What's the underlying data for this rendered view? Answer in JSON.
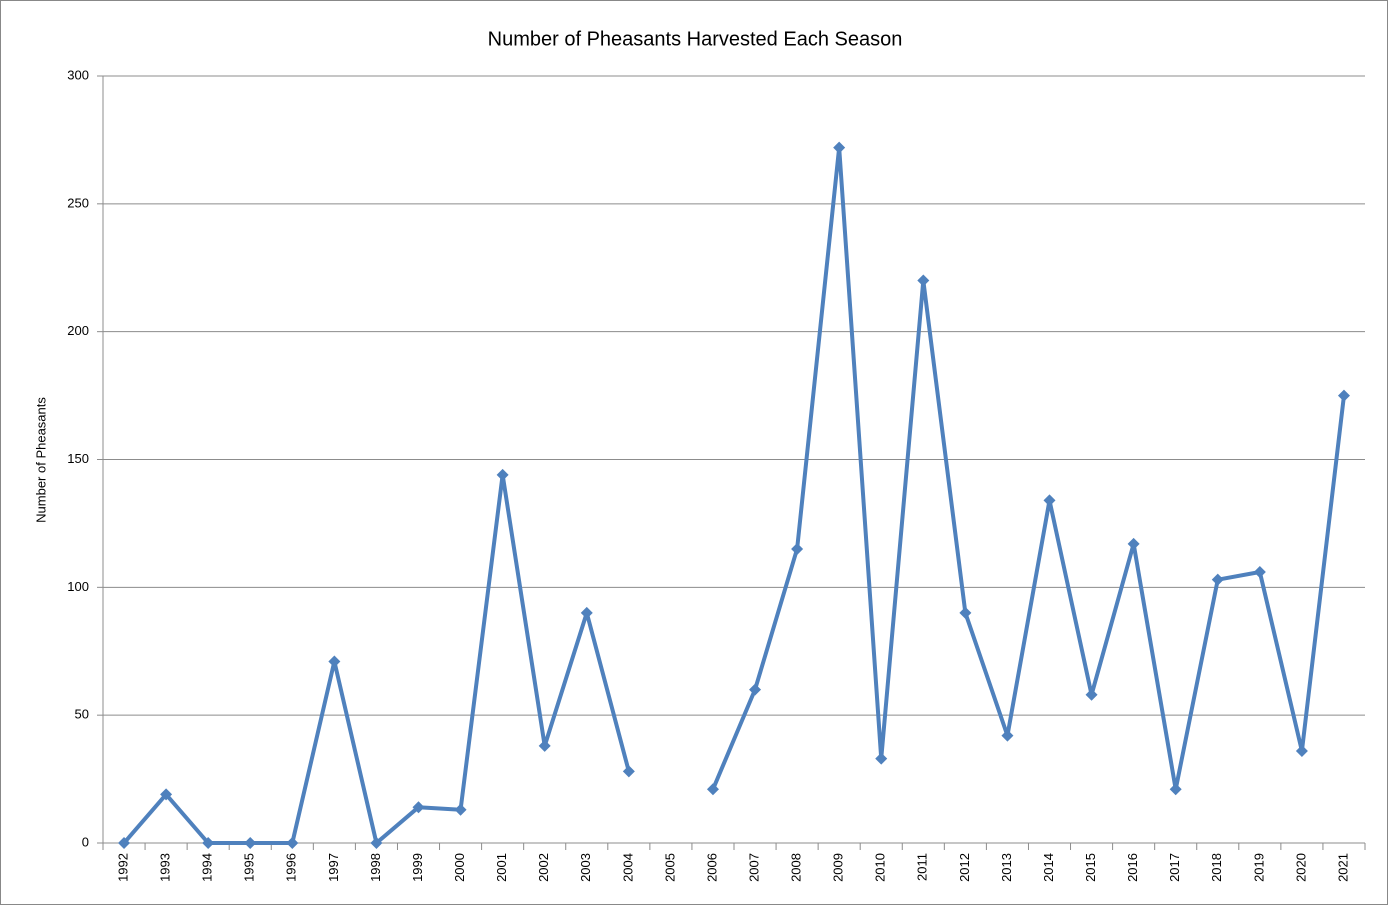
{
  "chart_data": {
    "type": "line",
    "title": "Number of Pheasants Harvested Each Season",
    "y_label": "Number of Pheasants",
    "categories": [
      "1992",
      "1993",
      "1994",
      "1995",
      "1996",
      "1997",
      "1998",
      "1999",
      "2000",
      "2001",
      "2002",
      "2003",
      "2004",
      "2005",
      "2006",
      "2007",
      "2008",
      "2009",
      "2010",
      "2011",
      "2012",
      "2013",
      "2014",
      "2015",
      "2016",
      "2017",
      "2018",
      "2019",
      "2020",
      "2021"
    ],
    "series": [
      {
        "name": "Pheasants",
        "color": "#4f81bd",
        "values": [
          0,
          19,
          0,
          0,
          0,
          71,
          0,
          14,
          13,
          144,
          38,
          90,
          28,
          null,
          21,
          60,
          115,
          272,
          33,
          220,
          90,
          42,
          134,
          58,
          117,
          21,
          103,
          106,
          36,
          175
        ]
      }
    ],
    "ylim": [
      0,
      300
    ],
    "yticks": [
      0,
      50,
      100,
      150,
      200,
      250,
      300
    ],
    "grid": true
  }
}
